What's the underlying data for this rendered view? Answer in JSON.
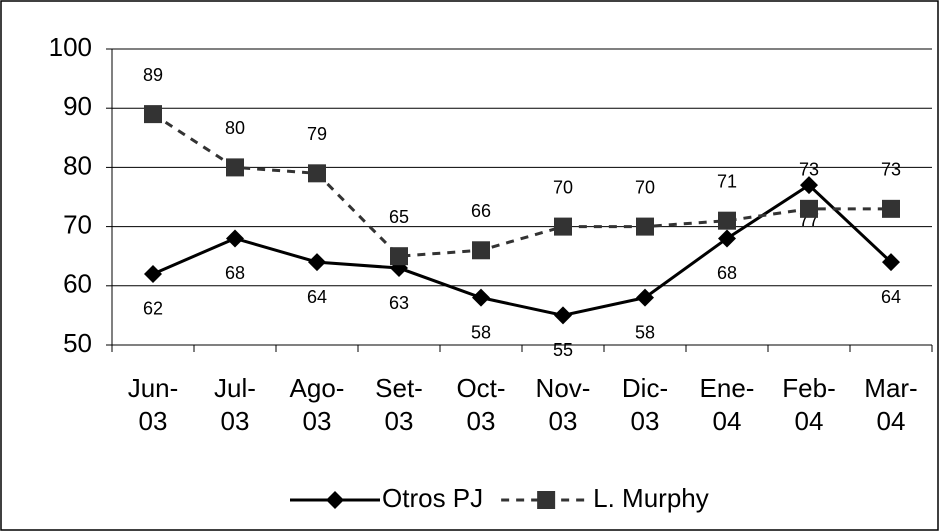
{
  "chart_data": {
    "type": "line",
    "categories": [
      "Jun-03",
      "Jul-03",
      "Ago-03",
      "Set-03",
      "Oct-03",
      "Nov-03",
      "Dic-03",
      "Ene-04",
      "Feb-04",
      "Mar-04"
    ],
    "series": [
      {
        "name": "Otros PJ",
        "color": "#000000",
        "marker": "diamond",
        "dashed": false,
        "values": [
          62,
          68,
          64,
          63,
          58,
          55,
          58,
          68,
          77,
          64
        ]
      },
      {
        "name": "L. Murphy",
        "color": "#333333",
        "marker": "square",
        "dashed": true,
        "values": [
          89,
          80,
          79,
          65,
          66,
          70,
          70,
          71,
          73,
          73
        ]
      }
    ],
    "ylim": [
      50,
      100
    ],
    "yticks": [
      50,
      60,
      70,
      80,
      90,
      100
    ],
    "grid": true,
    "legend": "bottom"
  }
}
